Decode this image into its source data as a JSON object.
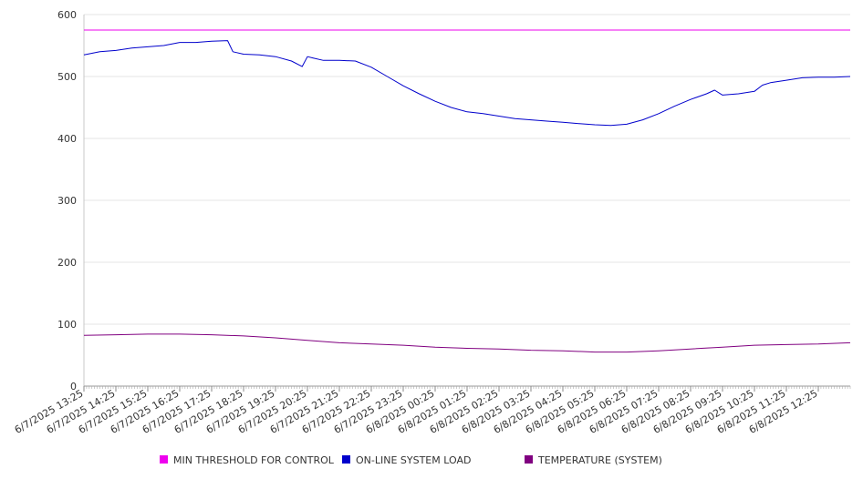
{
  "chart_data": {
    "type": "line",
    "title": "",
    "xlabel": "",
    "ylabel": "",
    "ylim": [
      0,
      600
    ],
    "yticks": [
      0,
      100,
      200,
      300,
      400,
      500,
      600
    ],
    "grid": true,
    "legend_position": "bottom",
    "x_tick_labels": [
      "6/7/2025 13:25",
      "6/7/2025 14:25",
      "6/7/2025 15:25",
      "6/7/2025 16:25",
      "6/7/2025 17:25",
      "6/7/2025 18:25",
      "6/7/2025 19:25",
      "6/7/2025 20:25",
      "6/7/2025 21:25",
      "6/7/2025 22:25",
      "6/7/2025 23:25",
      "6/8/2025 00:25",
      "6/8/2025 01:25",
      "6/8/2025 02:25",
      "6/8/2025 03:25",
      "6/8/2025 04:25",
      "6/8/2025 05:25",
      "6/8/2025 06:25",
      "6/8/2025 07:25",
      "6/8/2025 08:25",
      "6/8/2025 09:25",
      "6/8/2025 10:25",
      "6/8/2025 11:25",
      "6/8/2025 12:25"
    ],
    "series": [
      {
        "name": "MIN THRESHOLD FOR CONTROL",
        "color": "#ee00ee",
        "x": [
          "6/7/2025 13:25",
          "6/8/2025 13:25"
        ],
        "values": [
          575,
          575
        ]
      },
      {
        "name": "ON-LINE SYSTEM LOAD",
        "color": "#0000cc",
        "x": [
          "6/7/2025 13:25",
          "6/7/2025 13:55",
          "6/7/2025 14:25",
          "6/7/2025 14:55",
          "6/7/2025 15:25",
          "6/7/2025 15:55",
          "6/7/2025 16:25",
          "6/7/2025 16:55",
          "6/7/2025 17:25",
          "6/7/2025 17:55",
          "6/7/2025 18:05",
          "6/7/2025 18:25",
          "6/7/2025 18:55",
          "6/7/2025 19:25",
          "6/7/2025 19:55",
          "6/7/2025 20:15",
          "6/7/2025 20:25",
          "6/7/2025 20:35",
          "6/7/2025 20:55",
          "6/7/2025 21:25",
          "6/7/2025 21:55",
          "6/7/2025 22:25",
          "6/7/2025 22:55",
          "6/7/2025 23:25",
          "6/7/2025 23:55",
          "6/8/2025 00:25",
          "6/8/2025 00:55",
          "6/8/2025 01:25",
          "6/8/2025 01:55",
          "6/8/2025 02:25",
          "6/8/2025 02:55",
          "6/8/2025 03:25",
          "6/8/2025 03:55",
          "6/8/2025 04:25",
          "6/8/2025 04:55",
          "6/8/2025 05:25",
          "6/8/2025 05:55",
          "6/8/2025 06:25",
          "6/8/2025 06:55",
          "6/8/2025 07:25",
          "6/8/2025 07:55",
          "6/8/2025 08:25",
          "6/8/2025 08:55",
          "6/8/2025 09:10",
          "6/8/2025 09:25",
          "6/8/2025 09:55",
          "6/8/2025 10:25",
          "6/8/2025 10:40",
          "6/8/2025 10:55",
          "6/8/2025 11:25",
          "6/8/2025 11:55",
          "6/8/2025 12:25",
          "6/8/2025 12:55",
          "6/8/2025 13:25"
        ],
        "values": [
          535,
          540,
          542,
          546,
          548,
          550,
          555,
          555,
          557,
          558,
          540,
          536,
          535,
          532,
          525,
          516,
          532,
          530,
          526,
          526,
          525,
          515,
          500,
          485,
          472,
          460,
          450,
          443,
          440,
          436,
          432,
          430,
          428,
          426,
          424,
          422,
          421,
          423,
          430,
          440,
          452,
          463,
          472,
          478,
          470,
          472,
          476,
          486,
          490,
          494,
          498,
          499,
          499,
          500
        ]
      },
      {
        "name": "TEMPERATURE (SYSTEM)",
        "color": "#800080",
        "x": [
          "6/7/2025 13:25",
          "6/7/2025 14:25",
          "6/7/2025 15:25",
          "6/7/2025 16:25",
          "6/7/2025 17:25",
          "6/7/2025 18:25",
          "6/7/2025 19:25",
          "6/7/2025 20:25",
          "6/7/2025 21:25",
          "6/7/2025 22:25",
          "6/7/2025 23:25",
          "6/8/2025 00:25",
          "6/8/2025 01:25",
          "6/8/2025 02:25",
          "6/8/2025 03:25",
          "6/8/2025 04:25",
          "6/8/2025 05:25",
          "6/8/2025 06:25",
          "6/8/2025 07:25",
          "6/8/2025 08:25",
          "6/8/2025 09:25",
          "6/8/2025 10:25",
          "6/8/2025 11:25",
          "6/8/2025 12:25",
          "6/8/2025 13:25"
        ],
        "values": [
          82,
          83,
          84,
          84,
          83,
          81,
          78,
          74,
          70,
          68,
          66,
          63,
          61,
          60,
          58,
          57,
          55,
          55,
          57,
          60,
          63,
          66,
          67,
          68,
          70
        ]
      }
    ]
  }
}
